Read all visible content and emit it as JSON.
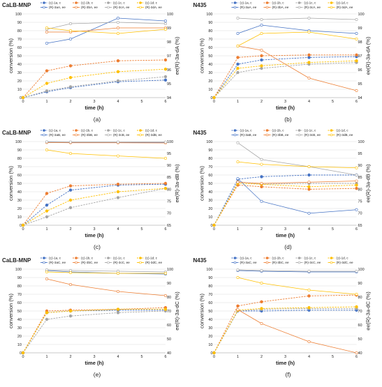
{
  "chart_data": [
    {
      "id": "a",
      "type": "line",
      "title": "CaLB-MNP",
      "panel_label": "(a)",
      "xlabel": "time (h)",
      "ylabel": "conversion (%)",
      "ylabel_right": "ee(R)-3a-dA (%)",
      "xlim": [
        0,
        6
      ],
      "x_ticks": [
        0,
        1,
        2,
        3,
        4,
        5,
        6
      ],
      "ylim": [
        0,
        100
      ],
      "y_ticks": [
        0,
        10,
        20,
        30,
        40,
        50,
        60,
        70,
        80,
        90,
        100
      ],
      "y2lim": [
        94,
        100
      ],
      "y2_ticks": [
        94,
        95,
        96,
        97,
        98,
        99,
        100
      ],
      "x": [
        0,
        1,
        2,
        4,
        6
      ],
      "series": [
        {
          "name": "(±)-1a, c",
          "axis": "left",
          "color": "#4472C4",
          "marker": "circle",
          "values": [
            0,
            7,
            12,
            19,
            21
          ]
        },
        {
          "name": "(±)-1b, c",
          "axis": "left",
          "color": "#ED7D31",
          "marker": "circle",
          "values": [
            0,
            32,
            38,
            44,
            45
          ]
        },
        {
          "name": "(±)-1c, c",
          "axis": "left",
          "color": "#A5A5A5",
          "marker": "circle",
          "values": [
            0,
            8,
            13,
            20,
            25
          ]
        },
        {
          "name": "(±)-1d, c",
          "axis": "left",
          "color": "#FFC000",
          "marker": "circle",
          "values": [
            0,
            17,
            24,
            31,
            34
          ]
        },
        {
          "name": "(R)-3aA, ee",
          "axis": "right",
          "color": "#4472C4",
          "marker": "open",
          "values": [
            null,
            97.9,
            98.2,
            99.7,
            99.5
          ]
        },
        {
          "name": "(R)-3bA, ee",
          "axis": "right",
          "color": "#ED7D31",
          "marker": "open",
          "values": [
            null,
            98.7,
            98.7,
            99.0,
            99.0
          ]
        },
        {
          "name": "(R)-3cA, ee",
          "axis": "right",
          "color": "#A5A5A5",
          "marker": "open",
          "values": [
            null,
            98.9,
            99.3,
            99.4,
            99.3
          ]
        },
        {
          "name": "(R)-3dA, ee",
          "axis": "right",
          "color": "#FFC000",
          "marker": "open",
          "values": [
            null,
            99.0,
            98.8,
            98.6,
            98.9
          ]
        }
      ]
    },
    {
      "id": "b",
      "type": "line",
      "title": "N435",
      "panel_label": "(b)",
      "xlabel": "time (h)",
      "ylabel": "conversion (%)",
      "ylabel_right": "ee(R)-3a-dA (%)",
      "xlim": [
        0,
        6
      ],
      "x_ticks": [
        0,
        1,
        2,
        3,
        4,
        5,
        6
      ],
      "ylim": [
        0,
        100
      ],
      "y_ticks": [
        0,
        10,
        20,
        30,
        40,
        50,
        60,
        70,
        80,
        90,
        100
      ],
      "y2lim": [
        94,
        100
      ],
      "y2_ticks": [
        94,
        95,
        96,
        97,
        98,
        99,
        100
      ],
      "x": [
        0,
        1,
        2,
        4,
        6
      ],
      "series": [
        {
          "name": "(±)-1a, c",
          "axis": "left",
          "color": "#4472C4",
          "marker": "circle",
          "values": [
            0,
            40,
            45,
            48,
            49
          ]
        },
        {
          "name": "(±)-1b, c",
          "axis": "left",
          "color": "#ED7D31",
          "marker": "circle",
          "values": [
            0,
            48,
            50,
            51,
            51
          ]
        },
        {
          "name": "(±)-1c, c",
          "axis": "left",
          "color": "#A5A5A5",
          "marker": "circle",
          "values": [
            0,
            30,
            35,
            40,
            42
          ]
        },
        {
          "name": "(±)-1d, c",
          "axis": "left",
          "color": "#FFC000",
          "marker": "circle",
          "values": [
            0,
            35,
            38,
            42,
            44
          ]
        },
        {
          "name": "(R)-3aA, ee",
          "axis": "right",
          "color": "#4472C4",
          "marker": "open",
          "values": [
            null,
            98.6,
            99.2,
            98.8,
            98.6
          ]
        },
        {
          "name": "(R)-3bA, ee",
          "axis": "right",
          "color": "#ED7D31",
          "marker": "open",
          "values": [
            null,
            97.7,
            97.4,
            95.4,
            94.5
          ]
        },
        {
          "name": "(R)-3cA, ee",
          "axis": "right",
          "color": "#A5A5A5",
          "marker": "open",
          "values": [
            null,
            99.7,
            99.6,
            99.7,
            99.6
          ]
        },
        {
          "name": "(R)-3dA, ee",
          "axis": "right",
          "color": "#FFC000",
          "marker": "open",
          "values": [
            null,
            97.7,
            98.6,
            98.7,
            98.2
          ]
        }
      ]
    },
    {
      "id": "c",
      "type": "line",
      "title": "CaLB-MNP",
      "panel_label": "(c)",
      "xlabel": "time (h)",
      "ylabel": "conversion (%)",
      "ylabel_right": "ee(R)-3a-dB (%)",
      "xlim": [
        0,
        6
      ],
      "x_ticks": [
        0,
        1,
        2,
        3,
        4,
        5,
        6
      ],
      "ylim": [
        0,
        100
      ],
      "y_ticks": [
        0,
        10,
        20,
        30,
        40,
        50,
        60,
        70,
        80,
        90,
        100
      ],
      "y2lim": [
        65,
        100
      ],
      "y2_ticks": [
        65,
        70,
        75,
        80,
        85,
        90,
        95,
        100
      ],
      "x": [
        0,
        1,
        2,
        4,
        6
      ],
      "series": [
        {
          "name": "(±)-1a, c",
          "axis": "left",
          "color": "#4472C4",
          "marker": "circle",
          "values": [
            0,
            24,
            42,
            48,
            49
          ]
        },
        {
          "name": "(±)-1b, c",
          "axis": "left",
          "color": "#ED7D31",
          "marker": "circle",
          "values": [
            0,
            38,
            47,
            49,
            50
          ]
        },
        {
          "name": "(±)-1c, c",
          "axis": "left",
          "color": "#A5A5A5",
          "marker": "circle",
          "values": [
            0,
            10,
            21,
            33,
            44
          ]
        },
        {
          "name": "(±)-1d, c",
          "axis": "left",
          "color": "#FFC000",
          "marker": "circle",
          "values": [
            0,
            17,
            30,
            40,
            44
          ]
        },
        {
          "name": "(R)-3aB, ee",
          "axis": "right",
          "color": "#4472C4",
          "marker": "open",
          "values": [
            null,
            99.8,
            99.7,
            99.7,
            99.6
          ]
        },
        {
          "name": "(R)-3bB, ee",
          "axis": "right",
          "color": "#ED7D31",
          "marker": "open",
          "values": [
            null,
            99.6,
            99.5,
            99.5,
            99.4
          ]
        },
        {
          "name": "(R)-3cB, ee",
          "axis": "right",
          "color": "#A5A5A5",
          "marker": "open",
          "values": [
            null,
            99.9,
            99.8,
            99.8,
            99.8
          ]
        },
        {
          "name": "(R)-3dB, ee",
          "axis": "right",
          "color": "#FFC000",
          "marker": "open",
          "values": [
            null,
            96.5,
            95.0,
            94.0,
            93.0
          ]
        }
      ]
    },
    {
      "id": "d",
      "type": "line",
      "title": "N435",
      "panel_label": "(d)",
      "xlabel": "time (h)",
      "ylabel": "conversion (%)",
      "ylabel_right": "ee(R)-3a-dB (%)",
      "xlim": [
        0,
        6
      ],
      "x_ticks": [
        0,
        1,
        2,
        3,
        4,
        5,
        6
      ],
      "ylim": [
        0,
        100
      ],
      "y_ticks": [
        0,
        10,
        20,
        30,
        40,
        50,
        60,
        70,
        80,
        90,
        100
      ],
      "y2lim": [
        65,
        100
      ],
      "y2_ticks": [
        65,
        70,
        75,
        80,
        85,
        90,
        95,
        100
      ],
      "x": [
        0,
        1,
        2,
        4,
        6
      ],
      "series": [
        {
          "name": "(±)-1a, c",
          "axis": "left",
          "color": "#4472C4",
          "marker": "circle",
          "values": [
            0,
            55,
            58,
            60,
            60
          ]
        },
        {
          "name": "(±)-1b, c",
          "axis": "left",
          "color": "#ED7D31",
          "marker": "circle",
          "values": [
            0,
            48,
            46,
            43,
            44
          ]
        },
        {
          "name": "(±)-1c, c",
          "axis": "left",
          "color": "#A5A5A5",
          "marker": "circle",
          "values": [
            0,
            52,
            49,
            50,
            50
          ]
        },
        {
          "name": "(±)-1d, c",
          "axis": "left",
          "color": "#FFC000",
          "marker": "circle",
          "values": [
            0,
            50,
            49,
            46,
            48
          ]
        },
        {
          "name": "(R)-3aB, ee",
          "axis": "right",
          "color": "#4472C4",
          "marker": "open",
          "values": [
            null,
            84.5,
            75.0,
            70.0,
            71.5
          ]
        },
        {
          "name": "(R)-3bB, ee",
          "axis": "right",
          "color": "#ED7D31",
          "marker": "open",
          "values": [
            null,
            83.0,
            82.5,
            83.0,
            83.5
          ]
        },
        {
          "name": "(R)-3cB, ee",
          "axis": "right",
          "color": "#A5A5A5",
          "marker": "open",
          "values": [
            null,
            99.5,
            92.5,
            89.5,
            86.0
          ]
        },
        {
          "name": "(R)-3dB, ee",
          "axis": "right",
          "color": "#FFC000",
          "marker": "open",
          "values": [
            null,
            91.5,
            90.5,
            89.5,
            89.0
          ]
        }
      ]
    },
    {
      "id": "e",
      "type": "line",
      "title": "CaLB-MNP",
      "panel_label": "(e)",
      "xlabel": "time (h)",
      "ylabel": "conversion (%)",
      "ylabel_right": "ee(R)-3a-dC (%)",
      "xlim": [
        0,
        6
      ],
      "x_ticks": [
        0,
        1,
        2,
        3,
        4,
        5,
        6
      ],
      "ylim": [
        0,
        100
      ],
      "y_ticks": [
        0,
        10,
        20,
        30,
        40,
        50,
        60,
        70,
        80,
        90,
        100
      ],
      "y2lim": [
        40,
        100
      ],
      "y2_ticks": [
        40,
        50,
        60,
        70,
        80,
        90,
        100
      ],
      "x": [
        0,
        1,
        2,
        4,
        6
      ],
      "series": [
        {
          "name": "(±)-1a, c",
          "axis": "left",
          "color": "#4472C4",
          "marker": "circle",
          "values": [
            0,
            48,
            50,
            51,
            51
          ]
        },
        {
          "name": "(±)-1b, c",
          "axis": "left",
          "color": "#ED7D31",
          "marker": "circle",
          "values": [
            0,
            50,
            51,
            52,
            54
          ]
        },
        {
          "name": "(±)-1c, c",
          "axis": "left",
          "color": "#A5A5A5",
          "marker": "circle",
          "values": [
            0,
            40,
            44,
            48,
            50
          ]
        },
        {
          "name": "(±)-1d, c",
          "axis": "left",
          "color": "#FFC000",
          "marker": "circle",
          "values": [
            0,
            48,
            50,
            52,
            52
          ]
        },
        {
          "name": "(R)-3aC, ee",
          "axis": "right",
          "color": "#4472C4",
          "marker": "open",
          "values": [
            null,
            99.0,
            98.0,
            97.0,
            96.5
          ]
        },
        {
          "name": "(R)-3bC, ee",
          "axis": "right",
          "color": "#ED7D31",
          "marker": "open",
          "values": [
            null,
            93.0,
            89.0,
            84.0,
            81.0
          ]
        },
        {
          "name": "(R)-3cC, ee",
          "axis": "right",
          "color": "#A5A5A5",
          "marker": "open",
          "values": [
            null,
            99.5,
            99.0,
            98.5,
            98.0
          ]
        },
        {
          "name": "(R)-3dC, ee",
          "axis": "right",
          "color": "#FFC000",
          "marker": "open",
          "values": [
            null,
            98.0,
            97.5,
            97.0,
            97.0
          ]
        }
      ]
    },
    {
      "id": "f",
      "type": "line",
      "title": "N435",
      "panel_label": "(f)",
      "xlabel": "time (h)",
      "ylabel": "conversion (%)",
      "ylabel_right": "ee(R)-3a-dC (%)",
      "xlim": [
        0,
        6
      ],
      "x_ticks": [
        0,
        1,
        2,
        3,
        4,
        5,
        6
      ],
      "ylim": [
        0,
        100
      ],
      "y_ticks": [
        0,
        10,
        20,
        30,
        40,
        50,
        60,
        70,
        80,
        90,
        100
      ],
      "y2lim": [
        40,
        100
      ],
      "y2_ticks": [
        40,
        50,
        60,
        70,
        80,
        90,
        100
      ],
      "x": [
        0,
        1,
        2,
        4,
        6
      ],
      "series": [
        {
          "name": "(±)-1a, c",
          "axis": "left",
          "color": "#4472C4",
          "marker": "circle",
          "values": [
            0,
            50,
            50,
            51,
            51
          ]
        },
        {
          "name": "(±)-1b, c",
          "axis": "left",
          "color": "#ED7D31",
          "marker": "circle",
          "values": [
            0,
            56,
            61,
            68,
            69
          ]
        },
        {
          "name": "(±)-1c, c",
          "axis": "left",
          "color": "#A5A5A5",
          "marker": "circle",
          "values": [
            0,
            50,
            52,
            53,
            53
          ]
        },
        {
          "name": "(±)-1d, c",
          "axis": "left",
          "color": "#FFC000",
          "marker": "circle",
          "values": [
            0,
            51,
            53,
            54,
            55
          ]
        },
        {
          "name": "(R)-3aC, ee",
          "axis": "right",
          "color": "#4472C4",
          "marker": "open",
          "values": [
            null,
            99.0,
            98.5,
            98.0,
            98.0
          ]
        },
        {
          "name": "(R)-3bC, ee",
          "axis": "right",
          "color": "#ED7D31",
          "marker": "open",
          "values": [
            null,
            71.0,
            61.0,
            48.0,
            40.0
          ]
        },
        {
          "name": "(R)-3cC, ee",
          "axis": "right",
          "color": "#A5A5A5",
          "marker": "open",
          "values": [
            null,
            99.5,
            99.0,
            98.5,
            98.5
          ]
        },
        {
          "name": "(R)-3dC, ee",
          "axis": "right",
          "color": "#FFC000",
          "marker": "open",
          "values": [
            null,
            94.0,
            90.0,
            85.0,
            82.0
          ]
        }
      ]
    }
  ]
}
